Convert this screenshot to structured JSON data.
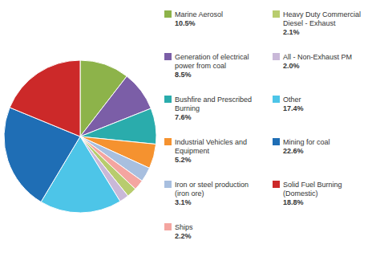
{
  "chart_data": {
    "type": "pie",
    "categories": [
      "Marine Aerosol",
      "Generation of electrical\npower from coal",
      "Bushfire and Prescribed\nBurning",
      "Industrial Vehicles and\nEquipment",
      "Iron or steel production\n(iron ore)",
      "Ships",
      "Heavy Duty Commercial\nDiesel - Exhaust",
      "All - Non-Exhaust PM",
      "Other",
      "Mining for coal",
      "Solid Fuel Burning\n(Domestic)"
    ],
    "values": [
      10.5,
      8.5,
      7.6,
      5.2,
      3.1,
      2.2,
      2.1,
      2.0,
      17.4,
      22.6,
      18.8
    ],
    "value_labels": [
      "10.5%",
      "8.5%",
      "7.6%",
      "5.2%",
      "3.1%",
      "2.2%",
      "2.1%",
      "2.0%",
      "17.4%",
      "22.6%",
      "18.8%"
    ],
    "colors": [
      "#8db34a",
      "#7b5ea7",
      "#2aacac",
      "#f5922f",
      "#a8bfdf",
      "#f4a5a0",
      "#b8cc6e",
      "#c9b8d8",
      "#4dc5e8",
      "#1f6eb5",
      "#cc2929"
    ],
    "data_labels": true
  }
}
